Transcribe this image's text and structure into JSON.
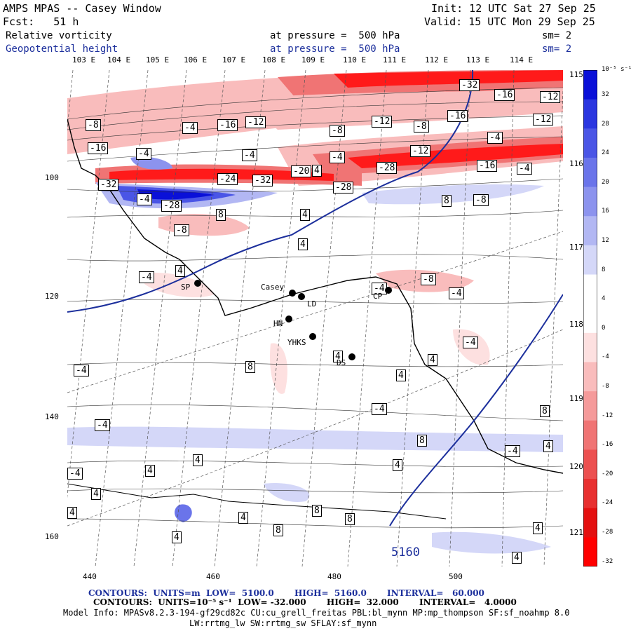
{
  "header": {
    "model": "AMPS MPAS -- Casey Window",
    "forecast": "Fcst:   51 h",
    "init": "Init: 12 UTC Sat 27 Sep 25",
    "valid": "Valid: 15 UTC Mon 29 Sep 25",
    "field1": "Relative vorticity",
    "field1_level": "at pressure =  500 hPa",
    "field1_sm": "sm= 2",
    "field2": "Geopotential height",
    "field2_level": "at pressure =  500 hPa",
    "field2_sm": "sm= 2"
  },
  "axes": {
    "top_lon": [
      "103 E",
      "104 E",
      "105 E",
      "106 E",
      "107 E",
      "108 E",
      "109 E",
      "110 E",
      "111 E",
      "112 E",
      "113 E",
      "114 E"
    ],
    "right_lon": [
      "115 E",
      "116 E",
      "117 E",
      "118 E",
      "119 E",
      "120 E",
      "121 E"
    ],
    "y_ticks": [
      "100",
      "120",
      "140",
      "160"
    ],
    "x_ticks": [
      "440",
      "460",
      "480",
      "500"
    ]
  },
  "colorbar": {
    "unit": "10⁻⁵ s⁻¹",
    "labels": [
      "32",
      "28",
      "24",
      "20",
      "16",
      "12",
      "8",
      "4",
      "0",
      "-4",
      "-8",
      "-12",
      "-16",
      "-20",
      "-24",
      "-28",
      "-32"
    ],
    "colors": [
      "#0a10d8",
      "#2a36e0",
      "#4a55e6",
      "#6a74ea",
      "#8c93ee",
      "#b2b7f3",
      "#d4d7f8",
      "#ffffff",
      "#ffffff",
      "#fde0e0",
      "#f9bcbc",
      "#f59a9a",
      "#f07474",
      "#ec5050",
      "#e83030",
      "#e41010",
      "#ff0000"
    ]
  },
  "stations": [
    {
      "name": "Casey"
    },
    {
      "name": "SP"
    },
    {
      "name": "HN"
    },
    {
      "name": "YHKS"
    },
    {
      "name": "DS"
    },
    {
      "name": "CP"
    },
    {
      "name": "LD"
    }
  ],
  "map_labels": {
    "vort": [
      "-32",
      "-16",
      "-12",
      "-8",
      "-4",
      "-16",
      "-12",
      "-8",
      "-12",
      "-8",
      "-16",
      "-12",
      "-16",
      "-4",
      "-4",
      "-4",
      "-12",
      "-4",
      "-20",
      "-28",
      "-32",
      "-4",
      "-28",
      "-24",
      "-32",
      "-28",
      "-16",
      "-4",
      "-8",
      "-4",
      "4",
      "8",
      "4",
      "4",
      "-8",
      "-4",
      "8",
      "-8",
      "-4",
      "-4",
      "8",
      "-4",
      "-4",
      "-4",
      "-4",
      "4",
      "4",
      "4",
      "4",
      "4",
      "8",
      "-4",
      "4",
      "8",
      "4",
      "4",
      "8",
      "8",
      "8",
      "4",
      "4",
      "4",
      "4",
      "4",
      "4",
      "-4",
      "8"
    ],
    "height_contour": "5160"
  },
  "footer": {
    "line1": "CONTOURS:  UNITS=m  LOW=  5100.0       HIGH=  5160.0       INTERVAL=   60.000",
    "line2": "CONTOURS:  UNITS=10⁻⁵ s⁻¹  LOW= -32.000       HIGH=  32.000       INTERVAL=   4.0000",
    "line3": "Model Info: MPASv8.2.3-194-gf29cd82c CU:cu_grell_freitas PBL:bl_mynn MP:mp_thompson SF:sf_noahmp 8.0",
    "line4": "LW:rrtmg_lw SW:rrtmg_sw SFLAY:sf_mynn"
  }
}
